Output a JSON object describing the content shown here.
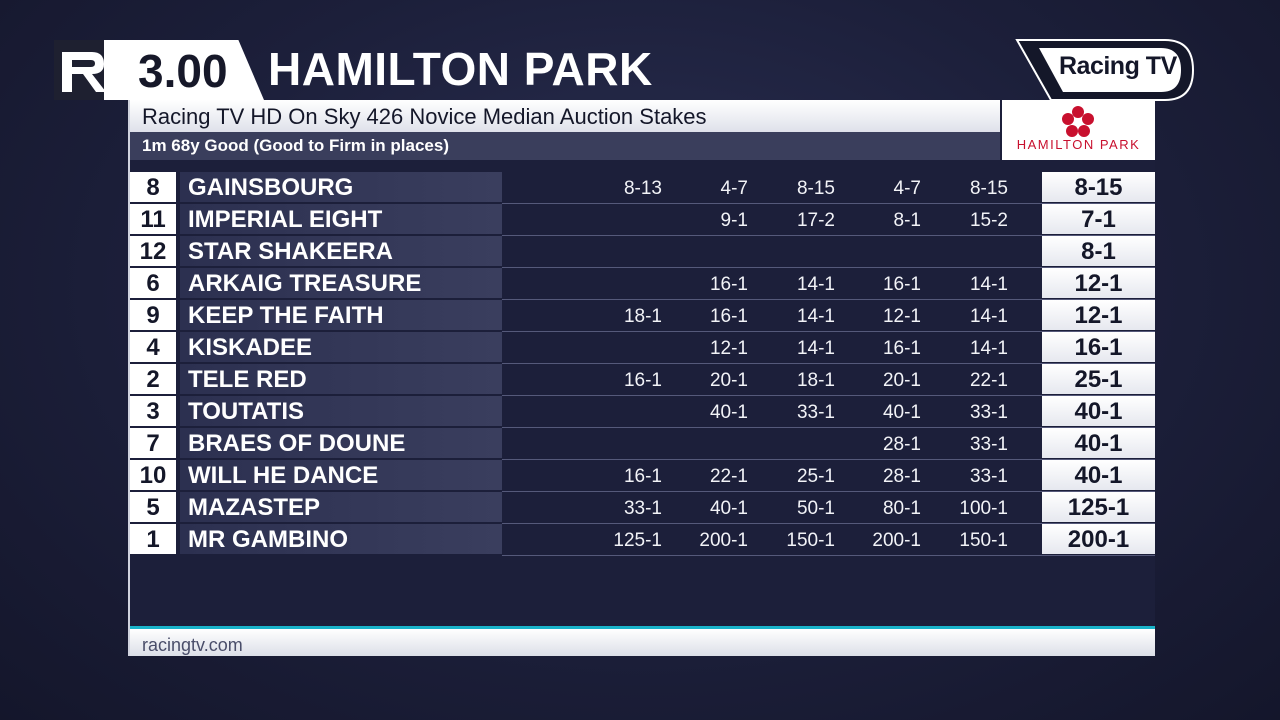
{
  "header": {
    "time": "3.00",
    "course": "HAMILTON PARK"
  },
  "channel_logo": {
    "text": "Racing TV",
    "icon": "racingtv-logo"
  },
  "race": {
    "title": "Racing TV HD On Sky 426 Novice Median Auction Stakes",
    "meta": "1m 68y   Good (Good to Firm in places)"
  },
  "course_logo": {
    "text": "HAMILTON PARK",
    "icon": "hamilton-park-flower-logo",
    "color": "#c8102e"
  },
  "runners": [
    {
      "num": "8",
      "horse": "GAINSBOURG",
      "odds": [
        "8-13",
        "4-7",
        "8-15",
        "4-7",
        "8-15"
      ],
      "current": "8-15"
    },
    {
      "num": "11",
      "horse": "IMPERIAL EIGHT",
      "odds": [
        "",
        "9-1",
        "17-2",
        "8-1",
        "15-2"
      ],
      "current": "7-1"
    },
    {
      "num": "12",
      "horse": "STAR SHAKEERA",
      "odds": [
        "",
        "",
        "",
        "",
        ""
      ],
      "current": "8-1"
    },
    {
      "num": "6",
      "horse": "ARKAIG TREASURE",
      "odds": [
        "",
        "16-1",
        "14-1",
        "16-1",
        "14-1"
      ],
      "current": "12-1"
    },
    {
      "num": "9",
      "horse": "KEEP THE FAITH",
      "odds": [
        "18-1",
        "16-1",
        "14-1",
        "12-1",
        "14-1"
      ],
      "current": "12-1"
    },
    {
      "num": "4",
      "horse": "KISKADEE",
      "odds": [
        "",
        "12-1",
        "14-1",
        "16-1",
        "14-1"
      ],
      "current": "16-1"
    },
    {
      "num": "2",
      "horse": "TELE RED",
      "odds": [
        "16-1",
        "20-1",
        "18-1",
        "20-1",
        "22-1"
      ],
      "current": "25-1"
    },
    {
      "num": "3",
      "horse": "TOUTATIS",
      "odds": [
        "",
        "40-1",
        "33-1",
        "40-1",
        "33-1"
      ],
      "current": "40-1"
    },
    {
      "num": "7",
      "horse": "BRAES OF DOUNE",
      "odds": [
        "",
        "",
        "",
        "28-1",
        "33-1"
      ],
      "current": "40-1"
    },
    {
      "num": "10",
      "horse": "WILL HE DANCE",
      "odds": [
        "16-1",
        "22-1",
        "25-1",
        "28-1",
        "33-1"
      ],
      "current": "40-1"
    },
    {
      "num": "5",
      "horse": "MAZASTEP",
      "odds": [
        "33-1",
        "40-1",
        "50-1",
        "80-1",
        "100-1"
      ],
      "current": "125-1"
    },
    {
      "num": "1",
      "horse": "MR GAMBINO",
      "odds": [
        "125-1",
        "200-1",
        "150-1",
        "200-1",
        "150-1"
      ],
      "current": "200-1"
    }
  ],
  "footer": {
    "url": "racingtv.com",
    "accent": "#19b3c9"
  }
}
